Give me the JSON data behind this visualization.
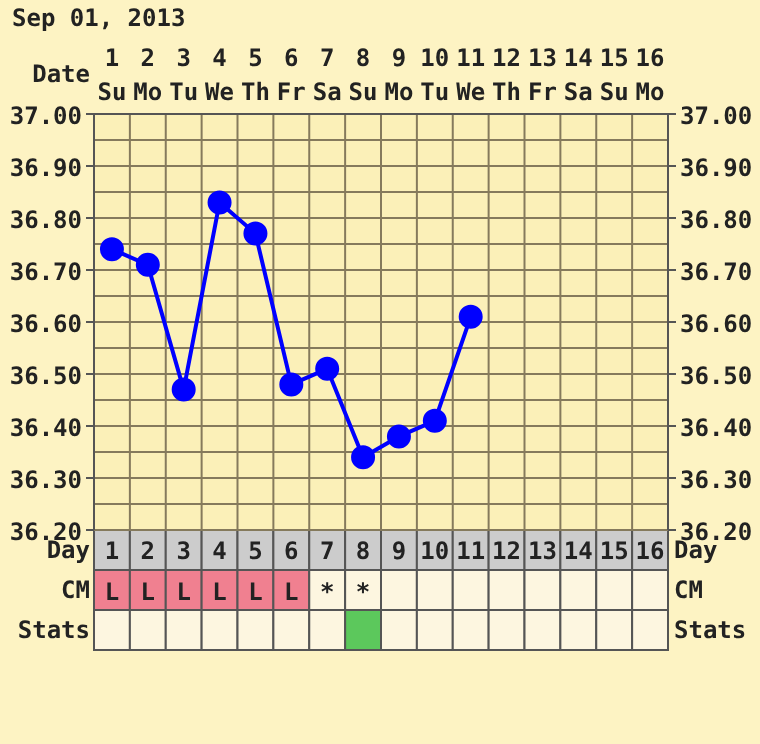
{
  "chart_data": {
    "type": "line",
    "title": "Sep 01, 2013",
    "xlabel": "Day",
    "x2label": "Date",
    "x": [
      1,
      2,
      3,
      4,
      5,
      6,
      7,
      8,
      9,
      10,
      11
    ],
    "series": [
      {
        "color": "#0000ff",
        "values": [
          36.74,
          36.71,
          36.47,
          36.83,
          36.77,
          36.48,
          36.51,
          36.34,
          36.38,
          36.41,
          36.61
        ]
      }
    ],
    "xlim": [
      0.5,
      16.5
    ],
    "xticks": [
      1,
      2,
      3,
      4,
      5,
      6,
      7,
      8,
      9,
      10,
      11,
      12,
      13,
      14,
      15,
      16
    ],
    "x2lim": [
      0.5,
      16.5
    ],
    "x2ticks": [
      1,
      2,
      3,
      4,
      5,
      6,
      7,
      8,
      9,
      10,
      11,
      12,
      13,
      14,
      15,
      16
    ],
    "ylim": [
      36.2,
      37.0
    ],
    "yticks": [
      {
        "value": 36.2,
        "label": "36.20"
      },
      {
        "value": 36.3,
        "label": "36.30"
      },
      {
        "value": 36.4,
        "label": "36.40"
      },
      {
        "value": 36.5,
        "label": "36.50"
      },
      {
        "value": 36.6,
        "label": "36.60"
      },
      {
        "value": 36.7,
        "label": "36.70"
      },
      {
        "value": 36.8,
        "label": "36.80"
      },
      {
        "value": 36.9,
        "label": "36.90"
      },
      {
        "value": 37.0,
        "label": "37.00"
      }
    ],
    "y2lim": [
      36.2,
      37.0
    ],
    "y2ticks": [
      {
        "value": 36.2,
        "label": "36.20"
      },
      {
        "value": 36.3,
        "label": "36.30"
      },
      {
        "value": 36.4,
        "label": "36.40"
      },
      {
        "value": 36.5,
        "label": "36.50"
      },
      {
        "value": 36.6,
        "label": "36.60"
      },
      {
        "value": 36.7,
        "label": "36.70"
      },
      {
        "value": 36.8,
        "label": "36.80"
      },
      {
        "value": 36.9,
        "label": "36.90"
      },
      {
        "value": 37.0,
        "label": "37.00"
      }
    ],
    "annotations": [
      "Su",
      "Mo",
      "Tu",
      "We",
      "Th",
      "Fr",
      "Sa",
      "Su",
      "Mo",
      "Tu",
      "We",
      "Th",
      "Fr",
      "Sa",
      "Su",
      "Mo",
      "CM",
      "Stats",
      "L",
      "L",
      "L",
      "L",
      "L",
      "L",
      "*",
      "*"
    ],
    "grid": true,
    "marker": "circle",
    "line_style": "solid"
  }
}
